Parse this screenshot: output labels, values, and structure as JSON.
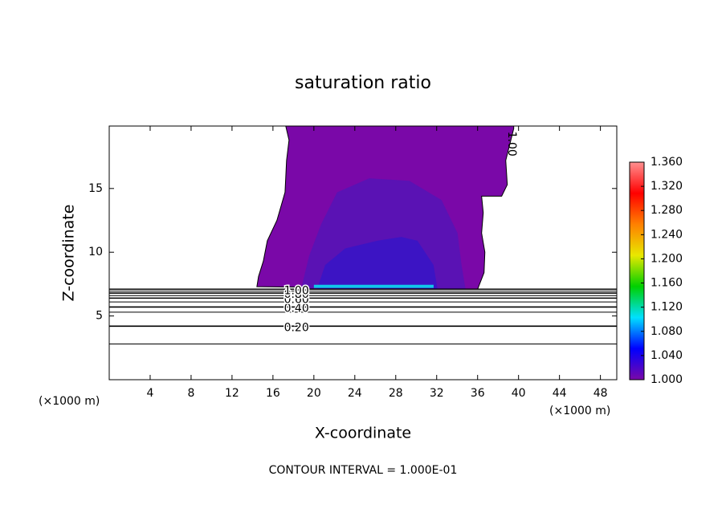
{
  "chart_data": {
    "type": "contour",
    "title": "saturation ratio",
    "x_label": "X-coordinate",
    "y_label": "Z-coordinate",
    "x_unit": "(×1000 m)",
    "footer": "CONTOUR INTERVAL = 1.000E-01",
    "xlim": [
      0,
      49.6
    ],
    "ylim": [
      0,
      19.9
    ],
    "xticks": [
      4,
      8,
      12,
      16,
      20,
      24,
      28,
      32,
      36,
      40,
      44,
      48
    ],
    "yticks": [
      5,
      10,
      15
    ],
    "regions": [
      {
        "level": 1.0,
        "color": "#7a08a8",
        "x": [
          17.25,
          17.57,
          17.33,
          17.18,
          16.39,
          15.45,
          15.06,
          14.59,
          14.43,
          36.0,
          36.63,
          36.71,
          36.39,
          36.55,
          36.39,
          38.35,
          38.9,
          38.75,
          39.53,
          39.53
        ],
        "z": [
          19.9,
          18.8,
          17.2,
          14.7,
          12.5,
          10.9,
          9.3,
          8.1,
          7.3,
          7.1,
          8.4,
          10.0,
          11.5,
          13.1,
          14.4,
          14.4,
          15.3,
          17.2,
          19.7,
          19.9
        ]
      },
      {
        "level": 1.01,
        "color": "#5a12b4",
        "x": [
          18.75,
          19.53,
          20.71,
          22.27,
          25.41,
          29.33,
          32.47,
          34.04,
          34.43,
          34.82
        ],
        "z": [
          7.1,
          9.7,
          12.2,
          14.7,
          15.8,
          15.6,
          14.1,
          11.5,
          9.0,
          7.1
        ]
      },
      {
        "level": 1.02,
        "color": "#3c14c4",
        "x": [
          20.31,
          21.1,
          23.06,
          26.2,
          28.55,
          30.12,
          31.69,
          32.08
        ],
        "z": [
          7.1,
          9.0,
          10.3,
          10.9,
          11.2,
          10.9,
          9.0,
          7.1
        ]
      },
      {
        "level": 1.1,
        "color": "#10c8e8",
        "x": [
          20.0,
          31.7,
          31.7,
          20.0
        ],
        "z": [
          7.2,
          7.2,
          7.45,
          7.45
        ]
      }
    ],
    "contours": [
      {
        "level": 0.1,
        "z": 2.8
      },
      {
        "level": 0.2,
        "label": "0.20",
        "z": 4.2
      },
      {
        "level": 0.3,
        "z": 5.3
      },
      {
        "level": 0.4,
        "label": "0.40",
        "z": 5.7
      },
      {
        "level": 0.5,
        "z": 6.1
      },
      {
        "level": 0.6,
        "label": "0.60",
        "z": 6.4
      },
      {
        "level": 0.7,
        "z": 6.6
      },
      {
        "level": 0.8,
        "label": "0.80",
        "z": 6.8
      },
      {
        "level": 0.9,
        "z": 6.95
      },
      {
        "level": 1.0,
        "label": "1.00",
        "z": 7.1
      }
    ],
    "colorbar": {
      "lim": [
        1.0,
        1.36
      ],
      "colors": [
        "#7a08a8",
        "#0000ff",
        "#00e0ff",
        "#00d000",
        "#e8e800",
        "#ff8000",
        "#ff0000",
        "#ff9090"
      ],
      "ticks": [
        {
          "value": 1.0,
          "label": "1.000"
        },
        {
          "value": 1.04,
          "label": "1.040"
        },
        {
          "value": 1.08,
          "label": "1.080"
        },
        {
          "value": 1.12,
          "label": "1.120"
        },
        {
          "value": 1.16,
          "label": "1.160"
        },
        {
          "value": 1.2,
          "label": "1.200"
        },
        {
          "value": 1.24,
          "label": "1.240"
        },
        {
          "value": 1.28,
          "label": "1.280"
        },
        {
          "value": 1.32,
          "label": "1.320"
        },
        {
          "value": 1.36,
          "label": "1.360"
        }
      ]
    }
  }
}
